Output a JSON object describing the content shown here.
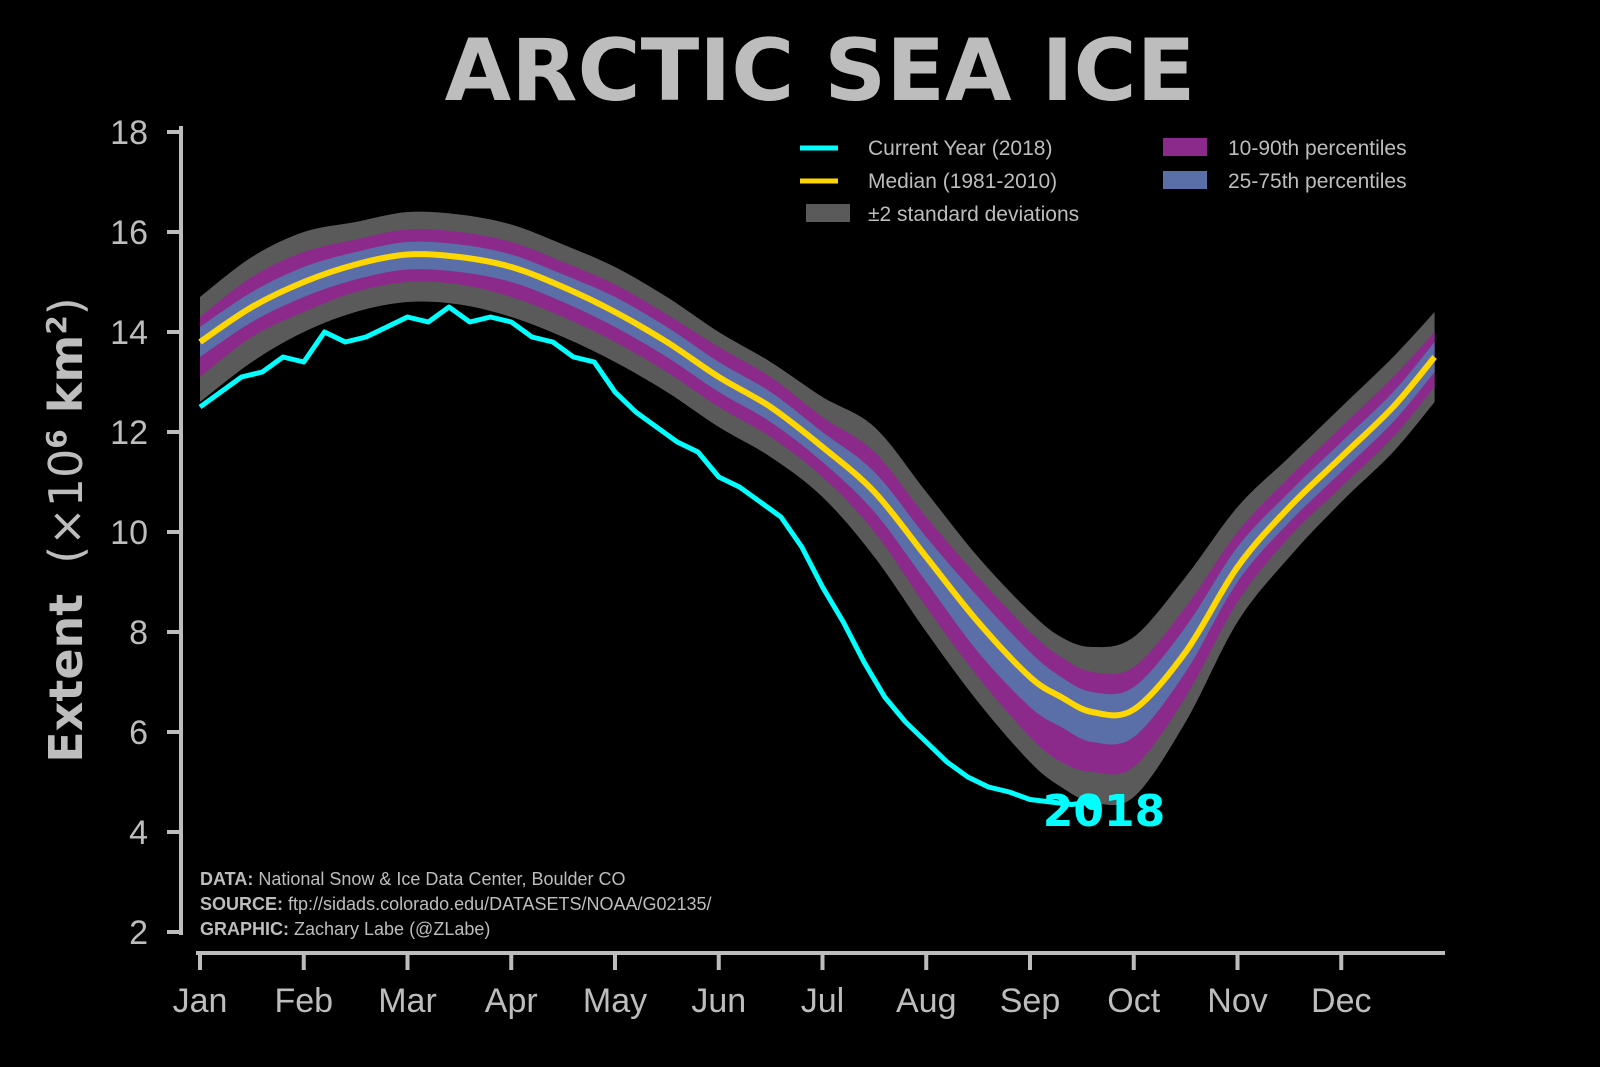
{
  "colors": {
    "background": "#000000",
    "text": "#bdbdbd",
    "current": "#00ffff",
    "median": "#ffd700",
    "std2": "#5a5a5a",
    "p10_90": "#8b2a8b",
    "p25_75": "#5a6ea8"
  },
  "chart_data": {
    "type": "area",
    "title": "ARCTIC SEA ICE",
    "ylabel": "Extent (×10⁶ km²)",
    "ylabel_parts": {
      "main": "Extent",
      "paren": "(×10",
      "exp": "6",
      "unit": " km",
      "unit_exp": "2",
      "close": ")"
    },
    "ylim": [
      1,
      18
    ],
    "yticks": [
      2,
      4,
      6,
      8,
      10,
      12,
      14,
      16,
      18
    ],
    "xlim": [
      0,
      12
    ],
    "xticks": [
      "Jan",
      "Feb",
      "Mar",
      "Apr",
      "May",
      "Jun",
      "Jul",
      "Aug",
      "Sep",
      "Oct",
      "Nov",
      "Dec"
    ],
    "grid": false,
    "legend_position": "top-right",
    "legend": [
      {
        "label": "Current Year (2018)",
        "kind": "line",
        "color_key": "current"
      },
      {
        "label": "Median (1981-2010)",
        "kind": "line",
        "color_key": "median"
      },
      {
        "label": "±2 standard deviations",
        "kind": "patch",
        "color_key": "std2"
      },
      {
        "label": "10-90th percentiles",
        "kind": "patch",
        "color_key": "p10_90"
      },
      {
        "label": "25-75th percentiles",
        "kind": "patch",
        "color_key": "p25_75"
      }
    ],
    "x": [
      0,
      0.5,
      1,
      1.5,
      2,
      2.5,
      3,
      3.5,
      4,
      4.5,
      5,
      5.5,
      6,
      6.5,
      7,
      7.5,
      8,
      8.3,
      8.6,
      9,
      9.5,
      10,
      10.5,
      11,
      11.5,
      11.9
    ],
    "median": [
      13.8,
      14.5,
      15.0,
      15.35,
      15.55,
      15.5,
      15.3,
      14.9,
      14.4,
      13.8,
      13.1,
      12.5,
      11.7,
      10.8,
      9.5,
      8.2,
      7.1,
      6.7,
      6.4,
      6.45,
      7.6,
      9.3,
      10.5,
      11.5,
      12.5,
      13.5
    ],
    "p25": [
      13.5,
      14.2,
      14.7,
      15.05,
      15.25,
      15.2,
      15.0,
      14.6,
      14.1,
      13.5,
      12.8,
      12.2,
      11.4,
      10.4,
      9.0,
      7.6,
      6.5,
      6.1,
      5.8,
      5.9,
      7.2,
      9.0,
      10.2,
      11.2,
      12.2,
      13.2
    ],
    "p75": [
      14.1,
      14.8,
      15.3,
      15.6,
      15.8,
      15.75,
      15.55,
      15.15,
      14.7,
      14.1,
      13.4,
      12.8,
      12.0,
      11.2,
      9.9,
      8.7,
      7.6,
      7.1,
      6.8,
      6.9,
      8.1,
      9.7,
      10.8,
      11.8,
      12.8,
      13.8
    ],
    "p10": [
      13.1,
      13.9,
      14.4,
      14.8,
      15.0,
      14.95,
      14.7,
      14.3,
      13.8,
      13.2,
      12.5,
      11.9,
      11.1,
      10.0,
      8.5,
      7.1,
      5.9,
      5.4,
      5.2,
      5.3,
      6.7,
      8.6,
      9.9,
      10.9,
      11.9,
      12.9
    ],
    "p90": [
      14.3,
      15.1,
      15.6,
      15.85,
      16.05,
      16.0,
      15.8,
      15.4,
      14.95,
      14.35,
      13.7,
      13.1,
      12.3,
      11.6,
      10.3,
      9.1,
      8.0,
      7.5,
      7.2,
      7.3,
      8.5,
      10.0,
      11.1,
      12.1,
      13.1,
      14.0
    ],
    "sd_low": [
      12.6,
      13.4,
      14.0,
      14.4,
      14.6,
      14.55,
      14.3,
      13.9,
      13.4,
      12.8,
      12.1,
      11.5,
      10.7,
      9.5,
      8.0,
      6.6,
      5.4,
      4.9,
      4.6,
      4.7,
      6.2,
      8.2,
      9.5,
      10.6,
      11.6,
      12.6
    ],
    "sd_high": [
      14.7,
      15.5,
      16.0,
      16.2,
      16.4,
      16.35,
      16.15,
      15.75,
      15.3,
      14.7,
      14.0,
      13.4,
      12.7,
      12.1,
      10.8,
      9.5,
      8.4,
      7.9,
      7.7,
      7.9,
      9.1,
      10.5,
      11.5,
      12.5,
      13.5,
      14.4
    ],
    "current_x": [
      0,
      0.2,
      0.4,
      0.6,
      0.8,
      1.0,
      1.2,
      1.4,
      1.6,
      1.8,
      2.0,
      2.2,
      2.4,
      2.6,
      2.8,
      3.0,
      3.2,
      3.4,
      3.6,
      3.8,
      4.0,
      4.2,
      4.4,
      4.6,
      4.8,
      5.0,
      5.2,
      5.4,
      5.6,
      5.8,
      6.0,
      6.2,
      6.4,
      6.6,
      6.8,
      7.0,
      7.2,
      7.4,
      7.6,
      7.8,
      8.0,
      8.2,
      8.4,
      8.6
    ],
    "current": [
      12.5,
      12.8,
      13.1,
      13.2,
      13.5,
      13.4,
      14.0,
      13.8,
      13.9,
      14.1,
      14.3,
      14.2,
      14.5,
      14.2,
      14.3,
      14.2,
      13.9,
      13.8,
      13.5,
      13.4,
      12.8,
      12.4,
      12.1,
      11.8,
      11.6,
      11.1,
      10.9,
      10.6,
      10.3,
      9.7,
      8.9,
      8.2,
      7.4,
      6.7,
      6.2,
      5.8,
      5.4,
      5.1,
      4.9,
      4.8,
      4.65,
      4.6,
      4.55,
      4.6
    ],
    "current_year_label": "2018",
    "credits": [
      {
        "label": "DATA:",
        "text": " National Snow & Ice Data Center, Boulder CO"
      },
      {
        "label": "SOURCE:",
        "text": " ftp://sidads.colorado.edu/DATASETS/NOAA/G02135/"
      },
      {
        "label": "GRAPHIC:",
        "text": " Zachary Labe (@ZLabe)"
      }
    ]
  }
}
